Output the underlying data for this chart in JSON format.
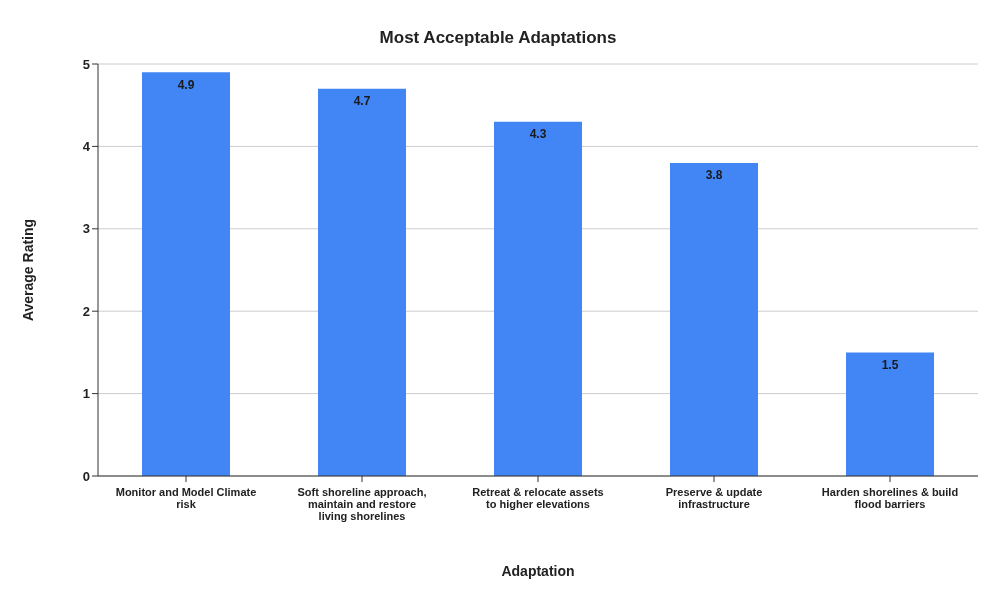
{
  "chart_data": {
    "type": "bar",
    "title": "Most Acceptable Adaptations",
    "xlabel": "Adaptation",
    "ylabel": "Average Rating",
    "categories": [
      "Monitor and Model Climate risk",
      "Soft shoreline approach, maintain and restore living shorelines",
      "Retreat & relocate assets to higher elevations",
      "Preserve & update infrastructure",
      "Harden shorelines & build flood barriers"
    ],
    "values": [
      4.9,
      4.7,
      4.3,
      3.8,
      1.5
    ],
    "color": "#4285f4",
    "data_labels": true,
    "ylim": [
      0,
      5
    ],
    "yticks": [
      0,
      1,
      2,
      3,
      4,
      5
    ],
    "grid": "y"
  }
}
